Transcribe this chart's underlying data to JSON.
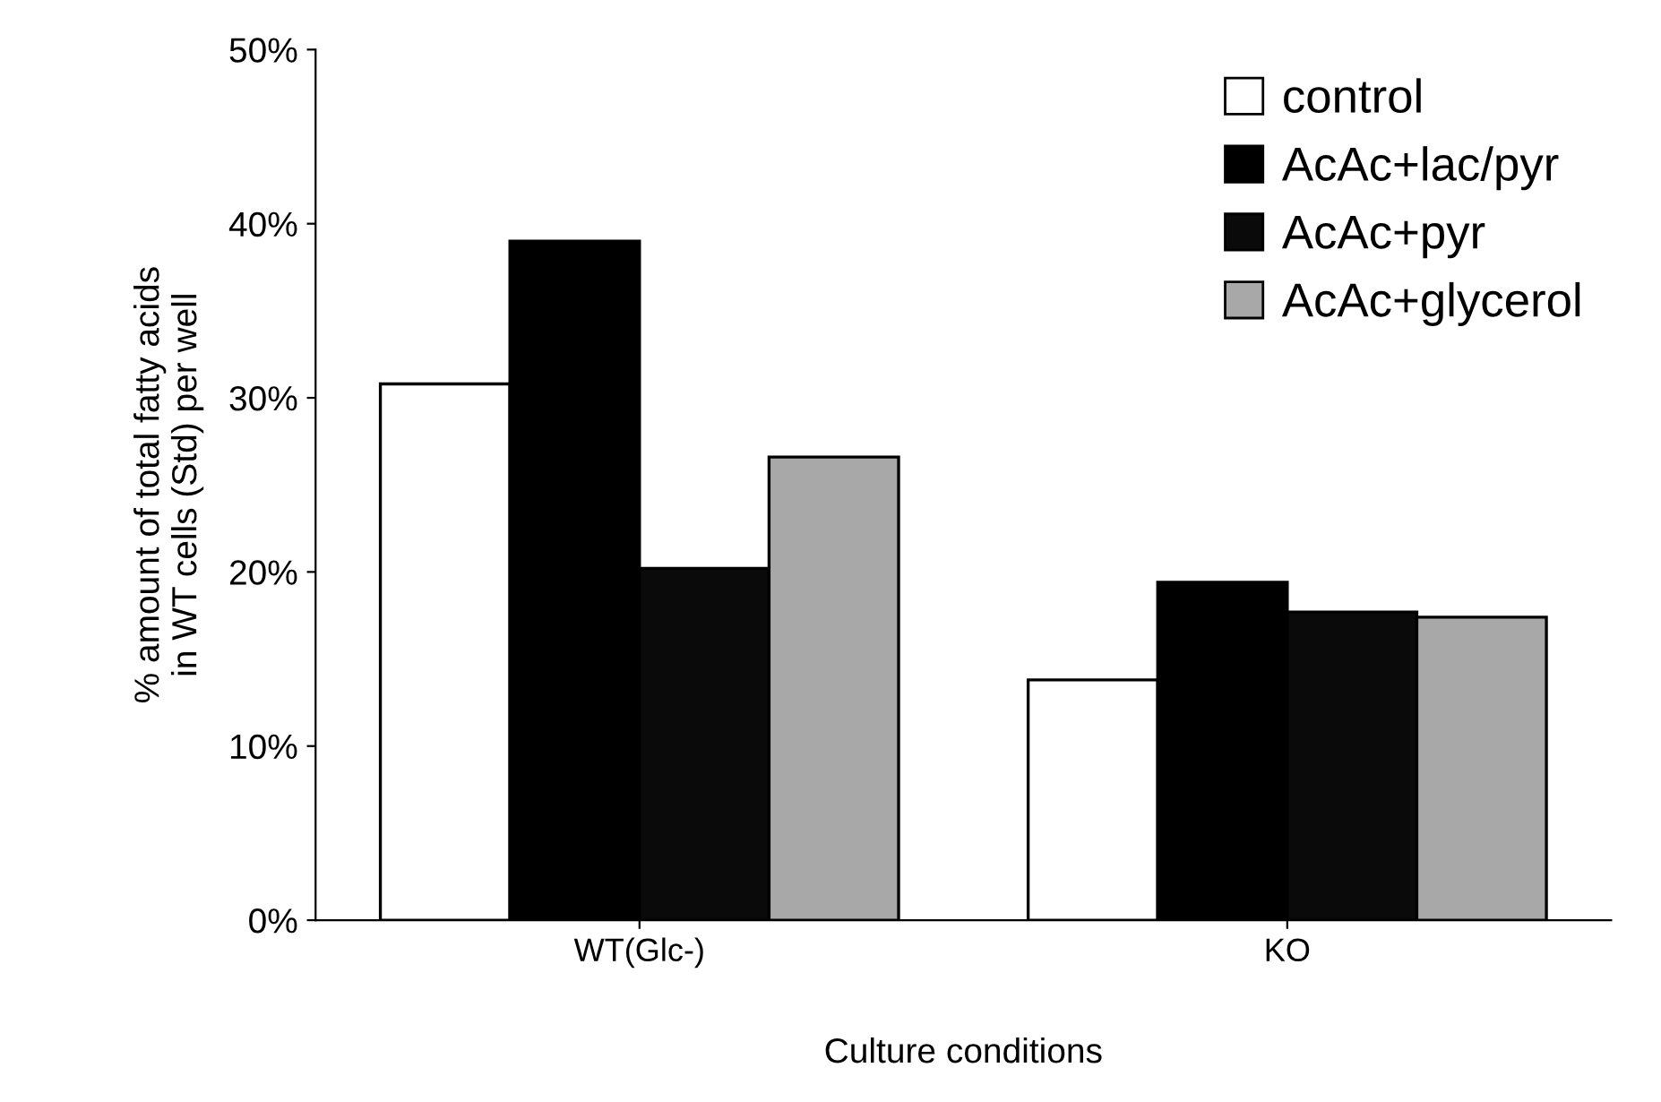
{
  "chart_data": {
    "type": "bar",
    "xlabel": "Culture conditions",
    "ylabel": "% amount of total fatty acids\nin WT cells (Std) per well",
    "categories": [
      "WT(Glc-)",
      "KO"
    ],
    "series": [
      {
        "name": "control",
        "color": "#ffffff",
        "values": [
          30.8,
          13.8
        ]
      },
      {
        "name": "AcAc+lac/pyr",
        "color": "#000000",
        "values": [
          39.0,
          19.4
        ]
      },
      {
        "name": "AcAc+pyr",
        "color": "#0a0a0a",
        "values": [
          20.2,
          17.7
        ]
      },
      {
        "name": "AcAc+glycerol",
        "color": "#a8a8a8",
        "values": [
          26.6,
          17.4
        ]
      }
    ],
    "ylim": [
      0,
      50
    ],
    "yticks": [
      {
        "value": 0,
        "label": "0%"
      },
      {
        "value": 10,
        "label": "10%"
      },
      {
        "value": 20,
        "label": "20%"
      },
      {
        "value": 30,
        "label": "30%"
      },
      {
        "value": 40,
        "label": "40%"
      },
      {
        "value": 50,
        "label": "50%"
      }
    ],
    "legend": "top right",
    "grid": false
  }
}
